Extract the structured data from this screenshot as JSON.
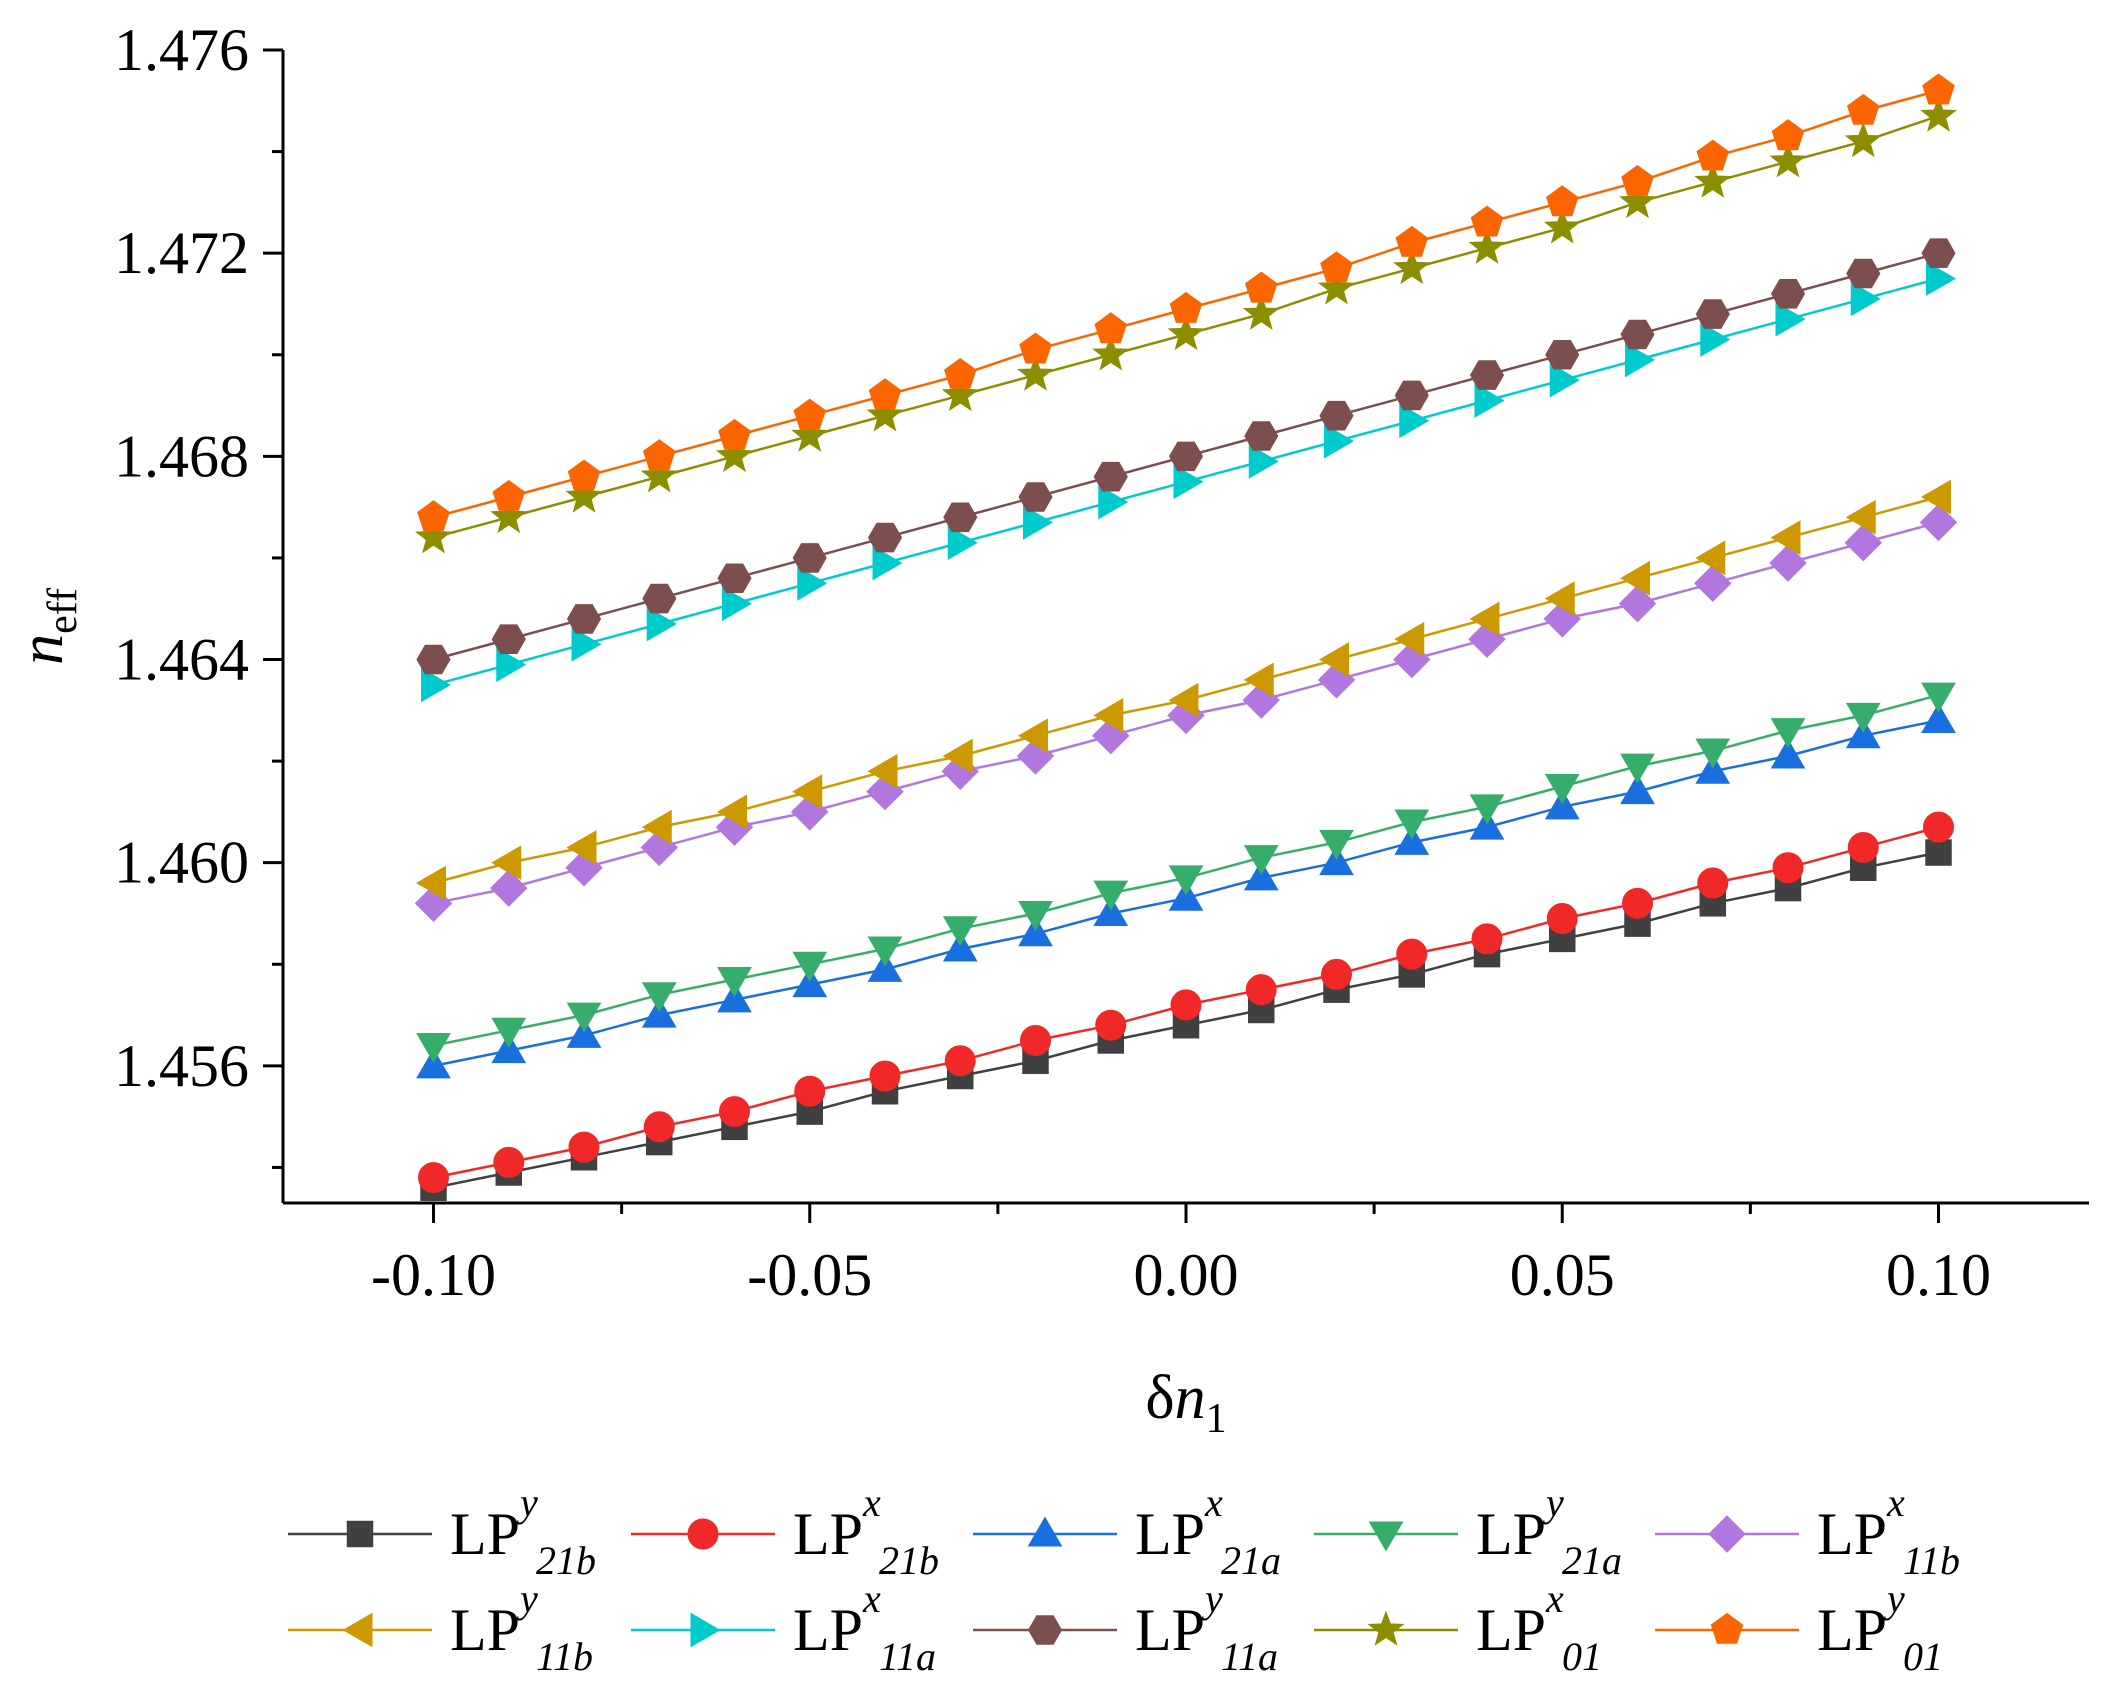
{
  "chart_data": {
    "type": "line",
    "title": "",
    "xlabel": {
      "base": "δn",
      "sub": "1"
    },
    "ylabel": {
      "base": "n",
      "sub": "eff"
    },
    "xlim": [
      -0.12,
      0.12
    ],
    "ylim": [
      1.4533,
      1.476
    ],
    "x_ticks": [
      -0.1,
      -0.05,
      0.0,
      0.05,
      0.1
    ],
    "x_tick_labels": [
      "-0.10",
      "-0.05",
      "0.00",
      "0.05",
      "0.10"
    ],
    "y_ticks": [
      1.456,
      1.46,
      1.464,
      1.468,
      1.472,
      1.476
    ],
    "y_tick_labels": [
      "1.456",
      "1.460",
      "1.464",
      "1.468",
      "1.472",
      "1.476"
    ],
    "grid": false,
    "legend_position": "bottom",
    "x": [
      -0.1,
      -0.09,
      -0.08,
      -0.07,
      -0.06,
      -0.05,
      -0.04,
      -0.03,
      -0.02,
      -0.01,
      0.0,
      0.01,
      0.02,
      0.03,
      0.04,
      0.05,
      0.06,
      0.07,
      0.08,
      0.09,
      0.1
    ],
    "series": [
      {
        "base": "LP",
        "sup": "y",
        "sub": "21b",
        "color": "#404040",
        "marker": "square",
        "values": [
          1.4536,
          1.4539,
          1.4542,
          1.4545,
          1.4548,
          1.4551,
          1.4555,
          1.4558,
          1.4561,
          1.4565,
          1.4568,
          1.4571,
          1.4575,
          1.4578,
          1.4582,
          1.4585,
          1.4588,
          1.4592,
          1.4595,
          1.4599,
          1.4602
        ]
      },
      {
        "base": "LP",
        "sup": "x",
        "sub": "21b",
        "color": "#f02828",
        "marker": "circle",
        "values": [
          1.4538,
          1.4541,
          1.4544,
          1.4548,
          1.4551,
          1.4555,
          1.4558,
          1.4561,
          1.4565,
          1.4568,
          1.4572,
          1.4575,
          1.4578,
          1.4582,
          1.4585,
          1.4589,
          1.4592,
          1.4596,
          1.4599,
          1.4603,
          1.4607
        ]
      },
      {
        "base": "LP",
        "sup": "x",
        "sub": "21a",
        "color": "#1a6fdf",
        "marker": "triangle-up",
        "values": [
          1.456,
          1.4563,
          1.4566,
          1.457,
          1.4573,
          1.4576,
          1.4579,
          1.4583,
          1.4586,
          1.459,
          1.4593,
          1.4597,
          1.46,
          1.4604,
          1.4607,
          1.4611,
          1.4614,
          1.4618,
          1.4621,
          1.4625,
          1.4628
        ]
      },
      {
        "base": "LP",
        "sup": "y",
        "sub": "21a",
        "color": "#37ad6b",
        "marker": "triangle-down",
        "values": [
          1.4564,
          1.4567,
          1.457,
          1.4574,
          1.4577,
          1.458,
          1.4583,
          1.4587,
          1.459,
          1.4594,
          1.4597,
          1.4601,
          1.4604,
          1.4608,
          1.4611,
          1.4615,
          1.4619,
          1.4622,
          1.4626,
          1.4629,
          1.4633
        ]
      },
      {
        "base": "LP",
        "sup": "x",
        "sub": "11b",
        "color": "#b177de",
        "marker": "diamond",
        "values": [
          1.4592,
          1.4595,
          1.4599,
          1.4603,
          1.4607,
          1.461,
          1.4614,
          1.4618,
          1.4621,
          1.4625,
          1.4629,
          1.4632,
          1.4636,
          1.464,
          1.4644,
          1.4648,
          1.4651,
          1.4655,
          1.4659,
          1.4663,
          1.4667
        ]
      },
      {
        "base": "LP",
        "sup": "y",
        "sub": "11b",
        "color": "#cc9900",
        "marker": "triangle-left",
        "values": [
          1.4596,
          1.46,
          1.4603,
          1.4607,
          1.461,
          1.4614,
          1.4618,
          1.4621,
          1.4625,
          1.4629,
          1.4632,
          1.4636,
          1.464,
          1.4644,
          1.4648,
          1.4652,
          1.4656,
          1.466,
          1.4664,
          1.4668,
          1.4672
        ]
      },
      {
        "base": "LP",
        "sup": "x",
        "sub": "11a",
        "color": "#00cbcc",
        "marker": "triangle-right",
        "values": [
          1.4635,
          1.4639,
          1.4643,
          1.4647,
          1.4651,
          1.4655,
          1.4659,
          1.4663,
          1.4667,
          1.4671,
          1.4675,
          1.4679,
          1.4683,
          1.4687,
          1.4691,
          1.4695,
          1.4699,
          1.4703,
          1.4707,
          1.4711,
          1.4715
        ]
      },
      {
        "base": "LP",
        "sup": "y",
        "sub": "11a",
        "color": "#7d4e4e",
        "marker": "hexagon",
        "values": [
          1.464,
          1.4644,
          1.4648,
          1.4652,
          1.4656,
          1.466,
          1.4664,
          1.4668,
          1.4672,
          1.4676,
          1.468,
          1.4684,
          1.4688,
          1.4692,
          1.4696,
          1.47,
          1.4704,
          1.4708,
          1.4712,
          1.4716,
          1.472
        ]
      },
      {
        "base": "LP",
        "sup": "x",
        "sub": "01",
        "color": "#8d8d00",
        "marker": "star",
        "values": [
          1.4664,
          1.4668,
          1.4672,
          1.4676,
          1.468,
          1.4684,
          1.4688,
          1.4692,
          1.4696,
          1.47,
          1.4704,
          1.4708,
          1.4713,
          1.4717,
          1.4721,
          1.4725,
          1.473,
          1.4734,
          1.4738,
          1.4742,
          1.4747
        ]
      },
      {
        "base": "LP",
        "sup": "y",
        "sub": "01",
        "color": "#fb6500",
        "marker": "pentagon",
        "values": [
          1.4668,
          1.4672,
          1.4676,
          1.468,
          1.4684,
          1.4688,
          1.4692,
          1.4696,
          1.4701,
          1.4705,
          1.4709,
          1.4713,
          1.4717,
          1.4722,
          1.4726,
          1.473,
          1.4734,
          1.4739,
          1.4743,
          1.4748,
          1.4752
        ]
      }
    ]
  }
}
